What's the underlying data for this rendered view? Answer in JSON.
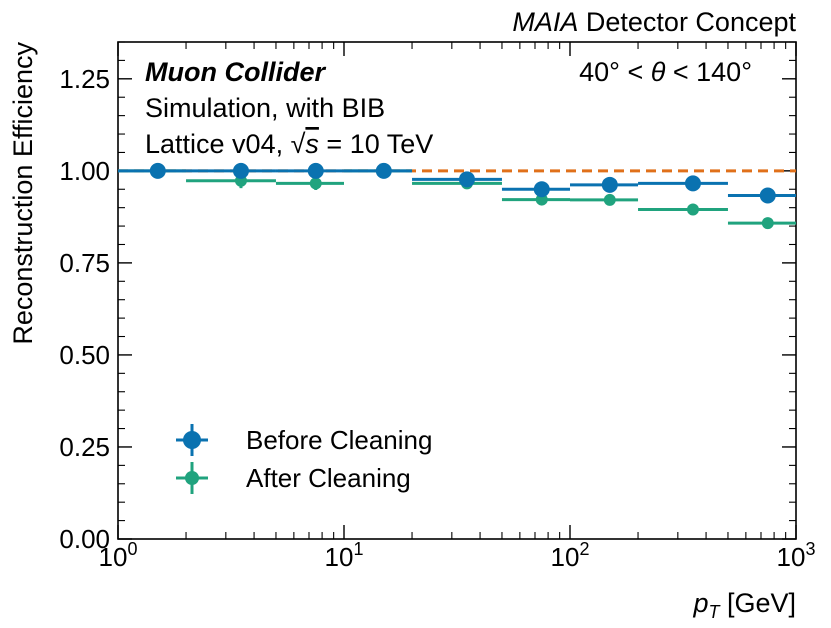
{
  "chart_data": {
    "type": "scatter",
    "header_right_italic": "MAIA",
    "header_right_rest": " Detector Concept",
    "annotations": {
      "experiment": "Muon Collider",
      "simulation": "Simulation, with BIB",
      "lattice_prefix": "Lattice v04, ",
      "sqrt": "√",
      "s": "s",
      "energy_suffix": " = 10 TeV",
      "theta_left": "40° < ",
      "theta": "θ",
      "theta_right": " < 140°"
    },
    "xlabel_symbol": "p",
    "xlabel_sub": "T",
    "xlabel_unit": " [GeV]",
    "ylabel": "Reconstruction Efficiency",
    "xscale": "log",
    "xlim": [
      1,
      1000
    ],
    "ylim": [
      0,
      1.35
    ],
    "x_major_ticks": [
      {
        "value": 1,
        "base": "10",
        "exp": "0"
      },
      {
        "value": 10,
        "base": "10",
        "exp": "1"
      },
      {
        "value": 100,
        "base": "10",
        "exp": "2"
      },
      {
        "value": 1000,
        "base": "10",
        "exp": "3"
      }
    ],
    "y_major_ticks": [
      {
        "value": 0,
        "label": "0.00"
      },
      {
        "value": 0.25,
        "label": "0.25"
      },
      {
        "value": 0.5,
        "label": "0.50"
      },
      {
        "value": 0.75,
        "label": "0.75"
      },
      {
        "value": 1.0,
        "label": "1.00"
      },
      {
        "value": 1.25,
        "label": "1.25"
      }
    ],
    "reference_line": {
      "y": 1.0,
      "color": "#e0701a",
      "style": "dashed"
    },
    "series": [
      {
        "name": "Before Cleaning",
        "color": "#0a72b0",
        "points": [
          {
            "x": 1.5,
            "xlo": 1,
            "xhi": 2,
            "y": 1.0,
            "yerr": 0.0
          },
          {
            "x": 3.5,
            "xlo": 2,
            "xhi": 5,
            "y": 1.0,
            "yerr": 0.0
          },
          {
            "x": 7.5,
            "xlo": 5,
            "xhi": 10,
            "y": 1.0,
            "yerr": 0.0
          },
          {
            "x": 15,
            "xlo": 10,
            "xhi": 20,
            "y": 1.0,
            "yerr": 0.0
          },
          {
            "x": 35,
            "xlo": 20,
            "xhi": 50,
            "y": 0.977,
            "yerr": 0.006
          },
          {
            "x": 75,
            "xlo": 50,
            "xhi": 100,
            "y": 0.95,
            "yerr": 0.01
          },
          {
            "x": 150,
            "xlo": 100,
            "xhi": 200,
            "y": 0.962,
            "yerr": 0.008
          },
          {
            "x": 350,
            "xlo": 200,
            "xhi": 500,
            "y": 0.966,
            "yerr": 0.007
          },
          {
            "x": 750,
            "xlo": 500,
            "xhi": 1000,
            "y": 0.933,
            "yerr": 0.008
          }
        ]
      },
      {
        "name": "After Cleaning",
        "color": "#20a37e",
        "points": [
          {
            "x": 1.5,
            "xlo": 1,
            "xhi": 2,
            "y": 1.0,
            "yerr": 0.0
          },
          {
            "x": 3.5,
            "xlo": 2,
            "xhi": 5,
            "y": 0.973,
            "yerr": 0.02
          },
          {
            "x": 7.5,
            "xlo": 5,
            "xhi": 10,
            "y": 0.966,
            "yerr": 0.018
          },
          {
            "x": 15,
            "xlo": 10,
            "xhi": 20,
            "y": 1.0,
            "yerr": 0.0
          },
          {
            "x": 35,
            "xlo": 20,
            "xhi": 50,
            "y": 0.966,
            "yerr": 0.008
          },
          {
            "x": 75,
            "xlo": 50,
            "xhi": 100,
            "y": 0.922,
            "yerr": 0.015
          },
          {
            "x": 150,
            "xlo": 100,
            "xhi": 200,
            "y": 0.921,
            "yerr": 0.01
          },
          {
            "x": 350,
            "xlo": 200,
            "xhi": 500,
            "y": 0.895,
            "yerr": 0.008
          },
          {
            "x": 750,
            "xlo": 500,
            "xhi": 1000,
            "y": 0.858,
            "yerr": 0.008
          }
        ]
      }
    ]
  }
}
